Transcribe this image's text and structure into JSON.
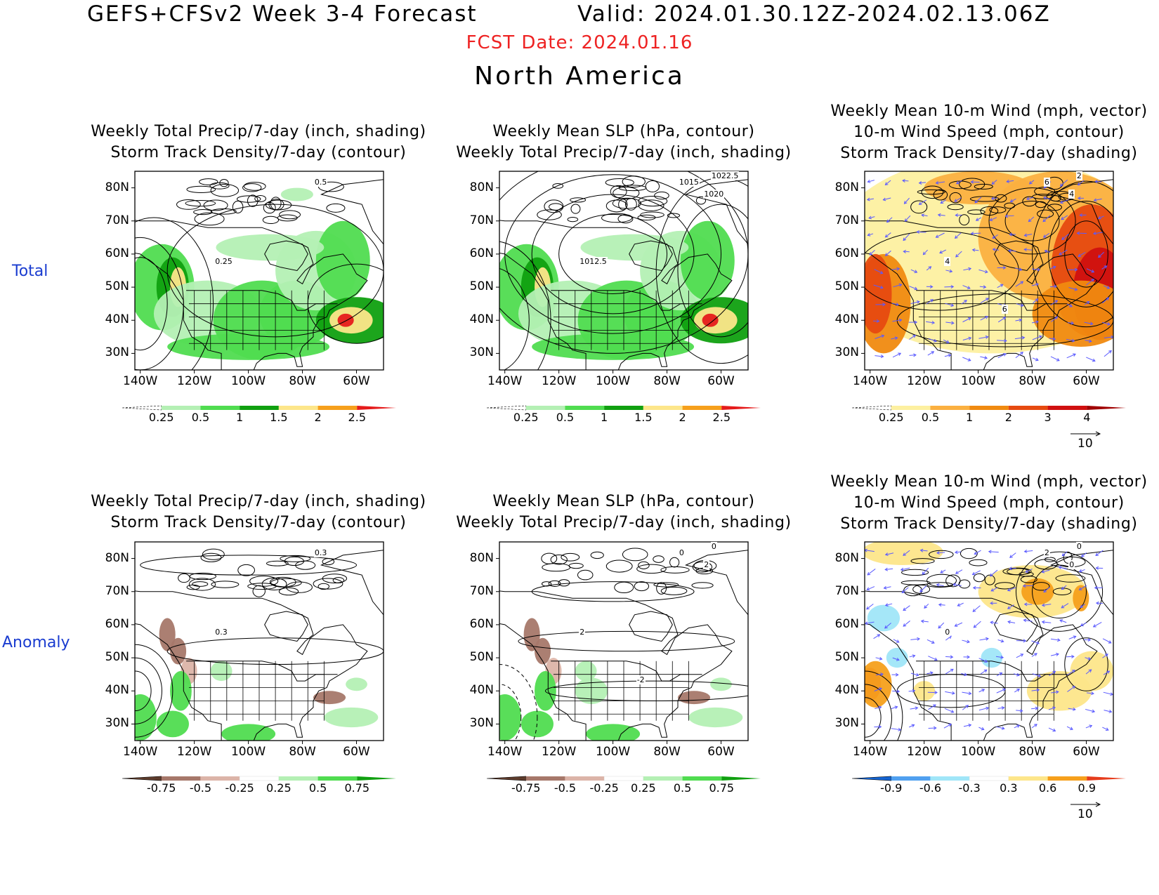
{
  "header": {
    "title": "GEFS+CFSv2 Week 3-4 Forecast",
    "valid": "Valid: 2024.01.30.12Z-2024.02.13.06Z",
    "fcst_date": "FCST Date: 2024.01.16",
    "region": "North America"
  },
  "rows": [
    {
      "label": "Total"
    },
    {
      "label": "Anomaly"
    }
  ],
  "axes": {
    "lat_ticks": [
      "80N",
      "70N",
      "60N",
      "50N",
      "40N",
      "30N"
    ],
    "lon_ticks": [
      "140W",
      "120W",
      "100W",
      "80W",
      "60W"
    ]
  },
  "colors": {
    "precip_total": [
      "#ffffff",
      "#b4f0b4",
      "#50dc50",
      "#10a010",
      "#fde68a",
      "#f6a01c",
      "#e51b1b"
    ],
    "storm_total": [
      "#ffffff",
      "#fdf0a0",
      "#fbb040",
      "#f08a10",
      "#e64a10",
      "#d01010",
      "#a00000"
    ],
    "precip_anom": [
      "#5e3c2c",
      "#a6786a",
      "#dcb4a8",
      "#ffffff",
      "#b4f0b4",
      "#50dc50",
      "#10a010"
    ],
    "storm_anom": [
      "#1464d2",
      "#50a0f0",
      "#a0e6f8",
      "#ffffff",
      "#fde68a",
      "#f6a01c",
      "#e63c1c"
    ],
    "vector": "#5a5aff"
  },
  "panels": [
    {
      "id": "p11",
      "title": [
        "Weekly Total Precip/7-day (inch, shading)",
        "Storm Track Density/7-day (contour)"
      ],
      "colorbar": [
        "0.25",
        "0.5",
        "1",
        "1.5",
        "2",
        "2.5"
      ],
      "contour_labels": [
        "0.5",
        "0.25"
      ]
    },
    {
      "id": "p12",
      "title": [
        "Weekly Mean SLP (hPa, contour)",
        "Weekly Total Precip/7-day (inch, shading)"
      ],
      "colorbar": [
        "0.25",
        "0.5",
        "1",
        "1.5",
        "2",
        "2.5"
      ],
      "contour_labels": [
        "1015",
        "1012.5",
        "1022.5",
        "1020"
      ]
    },
    {
      "id": "p13",
      "title": [
        "Weekly Mean 10-m Wind (mph, vector)",
        "10-m Wind Speed (mph, contour)",
        "Storm Track Density/7-day (shading)"
      ],
      "colorbar": [
        "0.25",
        "0.5",
        "1",
        "2",
        "3",
        "4"
      ],
      "vector_ref": "10",
      "contour_labels": [
        "6",
        "4",
        "2",
        "4",
        "6"
      ]
    },
    {
      "id": "p21",
      "title": [
        "Weekly Total Precip/7-day (inch, shading)",
        "Storm Track Density/7-day (contour)"
      ],
      "colorbar": [
        "-0.75",
        "-0.5",
        "-0.25",
        "0.25",
        "0.5",
        "0.75"
      ],
      "contour_labels": [
        "0.3",
        "0.3"
      ]
    },
    {
      "id": "p22",
      "title": [
        "Weekly Mean SLP (hPa, contour)",
        "Weekly Total Precip/7-day (inch, shading)"
      ],
      "colorbar": [
        "-0.75",
        "-0.5",
        "-0.25",
        "0.25",
        "0.5",
        "0.75"
      ],
      "contour_labels": [
        "0",
        "2",
        "0",
        "2",
        "-2"
      ]
    },
    {
      "id": "p23",
      "title": [
        "Weekly Mean 10-m Wind (mph, vector)",
        "10-m Wind Speed (mph, contour)",
        "Storm Track Density/7-day (shading)"
      ],
      "colorbar": [
        "-0.9",
        "-0.6",
        "-0.3",
        "0.3",
        "0.6",
        "0.9"
      ],
      "vector_ref": "10",
      "contour_labels": [
        "2",
        "0",
        "0",
        "0"
      ]
    }
  ]
}
